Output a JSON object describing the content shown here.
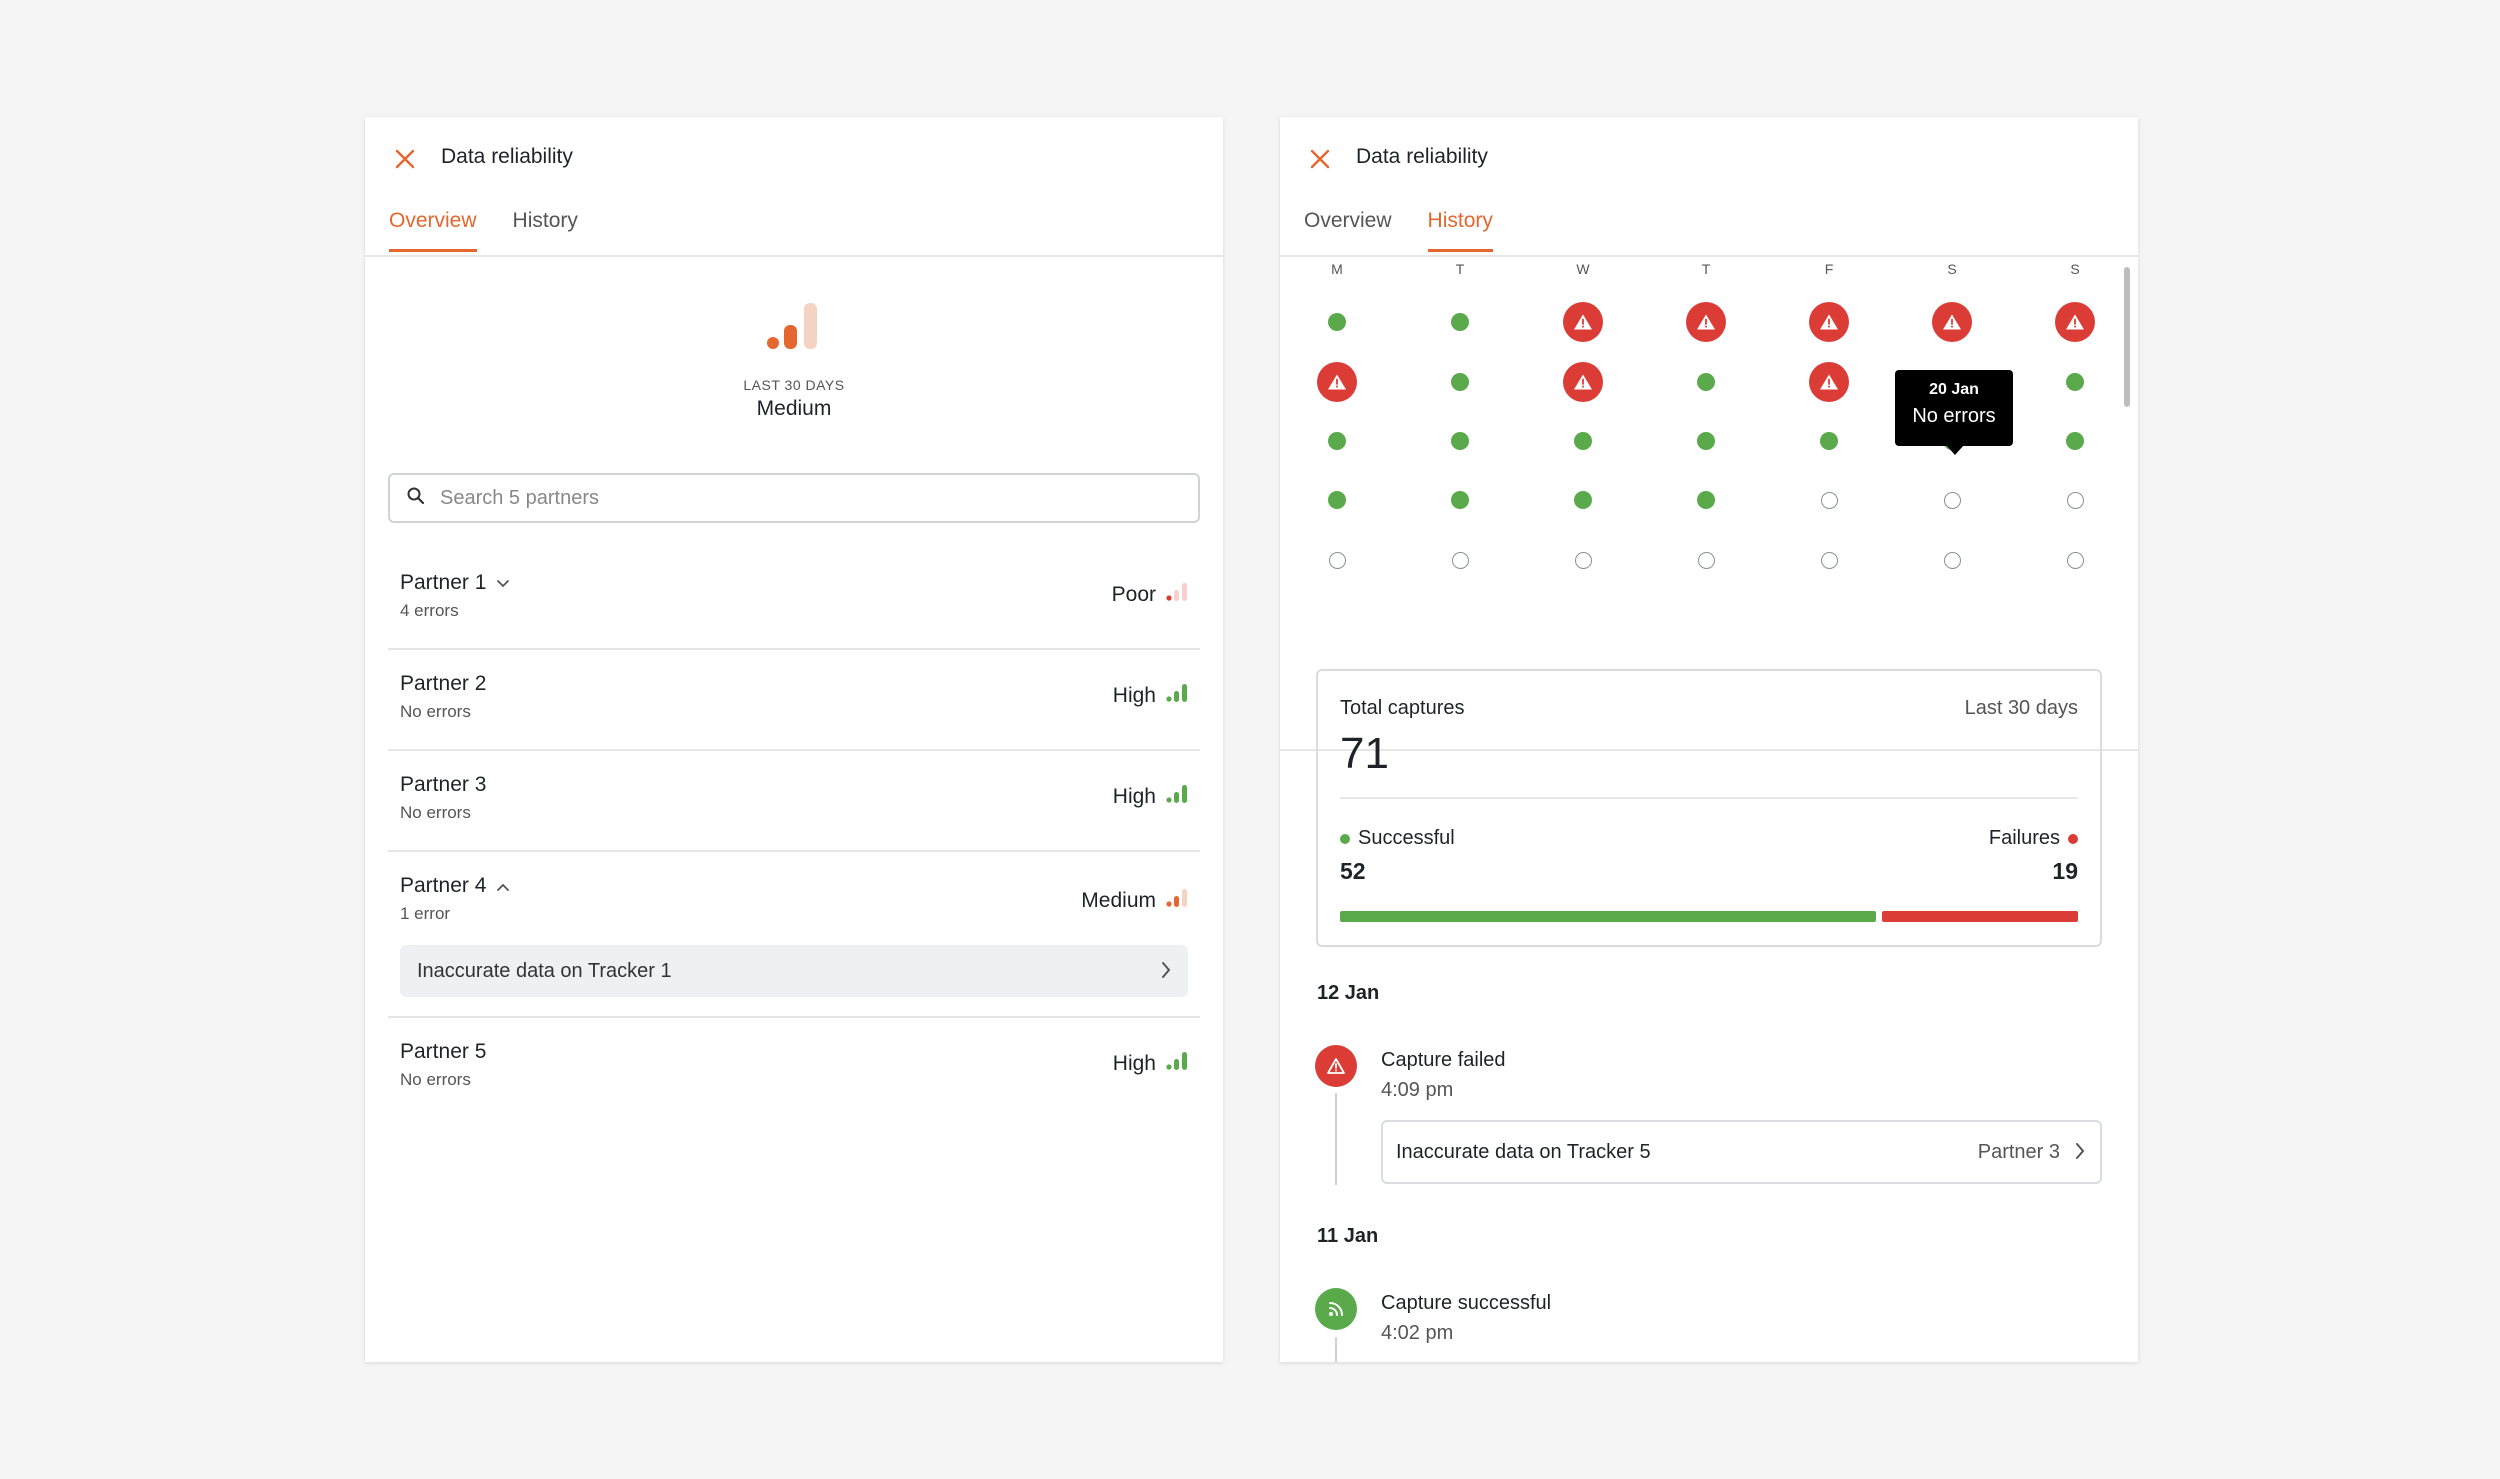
{
  "colors": {
    "accent": "#e5662e",
    "success": "#5aaa4c",
    "error": "#dc3c36",
    "medium_light": "#f5d3c2"
  },
  "left": {
    "title": "Data reliability",
    "tabs": [
      {
        "label": "Overview",
        "active": true
      },
      {
        "label": "History",
        "active": false
      }
    ],
    "summary": {
      "caption": "LAST 30 DAYS",
      "level": "Medium",
      "icon": "signal-medium-icon"
    },
    "search": {
      "placeholder": "Search 5 partners",
      "value": ""
    },
    "partners": [
      {
        "name": "Partner 1",
        "status": "4 errors",
        "level": "Poor",
        "toggle": "chevron-down"
      },
      {
        "name": "Partner 2",
        "status": "No errors",
        "level": "High"
      },
      {
        "name": "Partner 3",
        "status": "No errors",
        "level": "High"
      },
      {
        "name": "Partner 4",
        "status": "1 error",
        "level": "Medium",
        "toggle": "chevron-up",
        "error_item": "Inaccurate data on Tracker 1"
      },
      {
        "name": "Partner 5",
        "status": "No errors",
        "level": "High"
      }
    ]
  },
  "right": {
    "title": "Data reliability",
    "tabs": [
      {
        "label": "Overview",
        "active": false
      },
      {
        "label": "History",
        "active": true
      }
    ],
    "calendar": {
      "days": [
        "M",
        "T",
        "W",
        "T",
        "F",
        "S",
        "S"
      ],
      "weeks": [
        [
          "ok",
          "ok",
          "err",
          "err",
          "err",
          "err",
          "err"
        ],
        [
          "err",
          "ok",
          "err",
          "ok",
          "err",
          "ok",
          "ok"
        ],
        [
          "ok",
          "ok",
          "ok",
          "ok",
          "ok",
          "ok",
          "ok"
        ],
        [
          "ok",
          "ok",
          "ok",
          "ok",
          "empty",
          "empty",
          "empty"
        ],
        [
          "empty",
          "empty",
          "empty",
          "empty",
          "empty",
          "empty",
          "empty"
        ]
      ],
      "tooltip": {
        "date": "20 Jan",
        "status": "No errors"
      }
    },
    "captures": {
      "title": "Total captures",
      "period": "Last 30 days",
      "total": "71",
      "successful_label": "Successful",
      "successful": "52",
      "failures_label": "Failures",
      "failures": "19"
    },
    "events": [
      {
        "date": "12 Jan",
        "title": "Capture failed",
        "time": "4:09 pm",
        "type": "failed",
        "link": "Inaccurate data on Tracker 5",
        "partner": "Partner 3"
      },
      {
        "date": "11 Jan",
        "title": "Capture successful",
        "time": "4:02 pm",
        "type": "success"
      }
    ]
  }
}
